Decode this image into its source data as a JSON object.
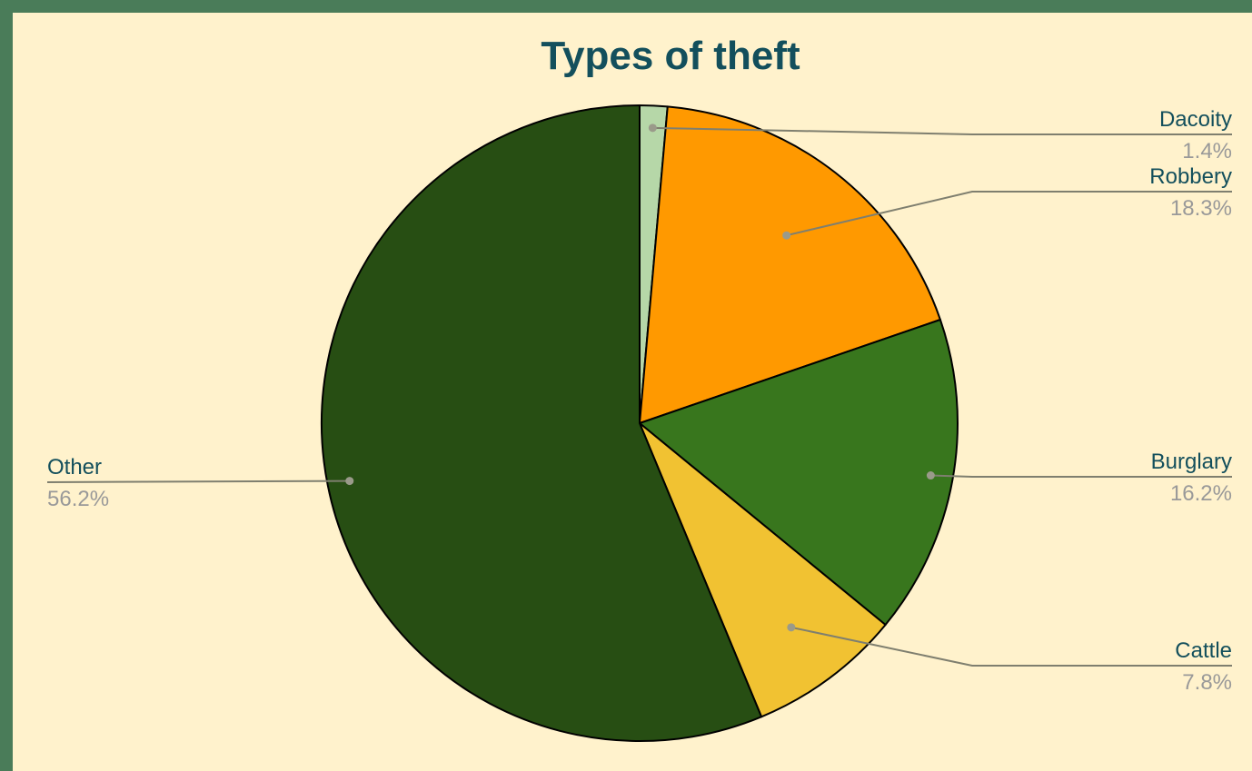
{
  "chart_data": {
    "type": "pie",
    "title": "Types of theft",
    "slices": [
      {
        "label": "Dacoity",
        "value": 1.4,
        "percent_label": "1.4%",
        "color": "#b6d7a8"
      },
      {
        "label": "Robbery",
        "value": 18.3,
        "percent_label": "18.3%",
        "color": "#ff9900"
      },
      {
        "label": "Burglary",
        "value": 16.2,
        "percent_label": "16.2%",
        "color": "#38761d"
      },
      {
        "label": "Cattle",
        "value": 7.8,
        "percent_label": "7.8%",
        "color": "#f1c232"
      },
      {
        "label": "Other",
        "value": 56.2,
        "percent_label": "56.2%",
        "color": "#274e13"
      }
    ],
    "legend": "none",
    "labels": "outside with leader lines"
  },
  "colors": {
    "background": "#fff2cc",
    "frame": "#4a7c59",
    "title": "#134f5c",
    "label_name": "#134f5c",
    "label_percent": "#999999",
    "leader_line": "#7f7f6f"
  }
}
